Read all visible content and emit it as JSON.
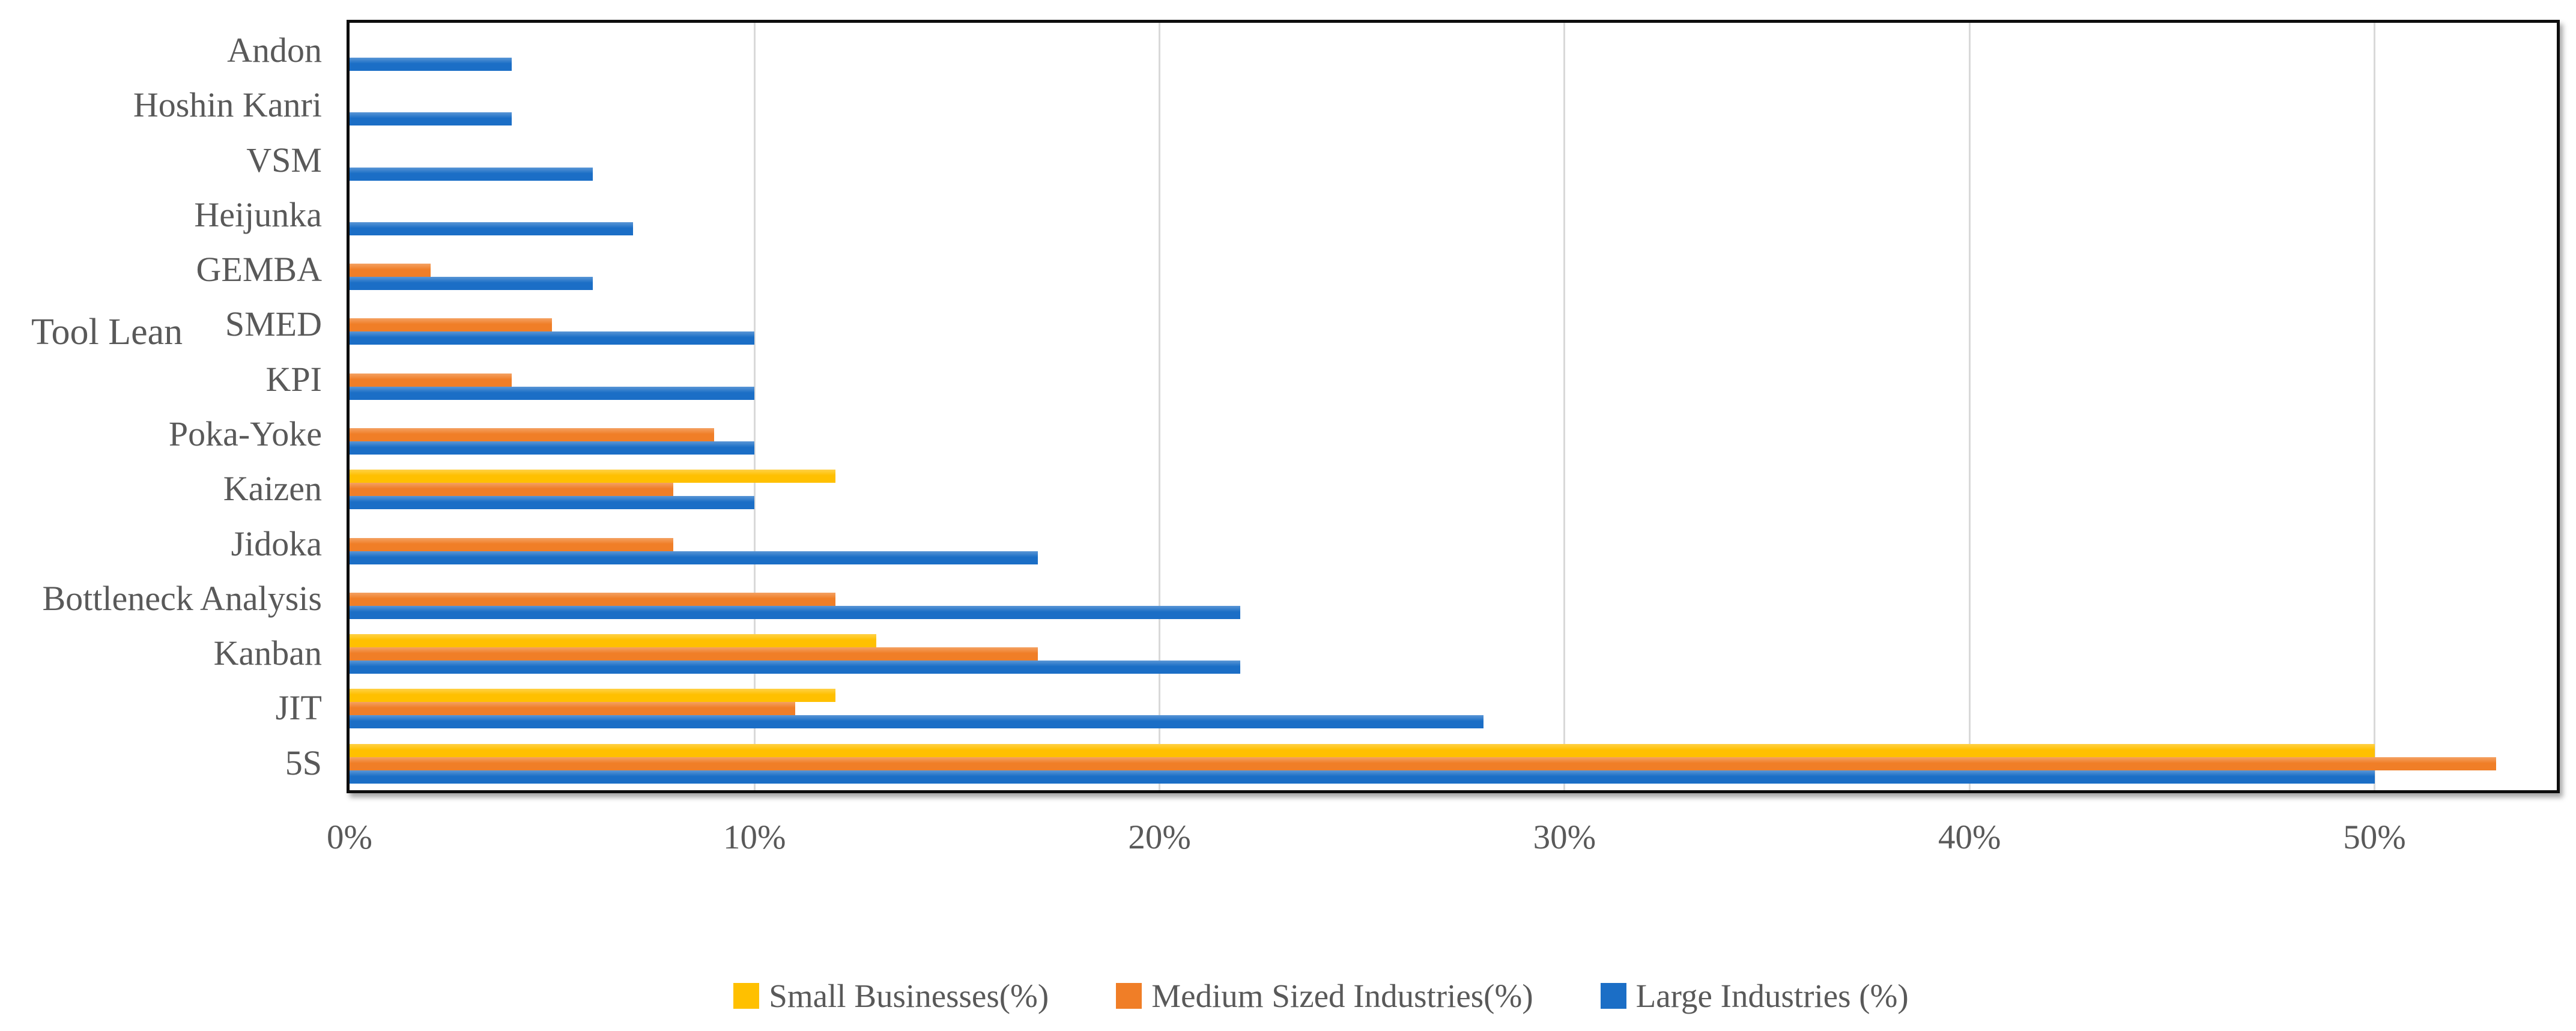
{
  "chart_data": {
    "type": "bar",
    "orientation": "horizontal",
    "axis_title": "Tool Lean",
    "categories": [
      "Andon",
      "Hoshin Kanri",
      "VSM",
      "Heijunka",
      "GEMBA",
      "SMED",
      "KPI",
      "Poka-Yoke",
      "Kaizen",
      "Jidoka",
      "Bottleneck Analysis",
      "Kanban",
      "JIT",
      "5S"
    ],
    "series": [
      {
        "name": "Small Businesses(%)",
        "color": "#FFC000",
        "values": [
          0,
          0,
          0,
          0,
          0,
          0,
          0,
          0,
          12,
          0,
          0,
          13,
          12,
          50
        ]
      },
      {
        "name": "Medium Sized Industries(%)",
        "color": "#F07E27",
        "values": [
          0,
          0,
          0,
          0,
          2,
          5,
          4,
          9,
          8,
          8,
          12,
          17,
          11,
          53
        ]
      },
      {
        "name": "Large Industries (%)",
        "color": "#1B6EC6",
        "values": [
          4,
          4,
          6,
          7,
          6,
          10,
          10,
          10,
          10,
          17,
          22,
          22,
          28,
          50
        ]
      }
    ],
    "x_ticks": [
      {
        "label": "0%",
        "value": 0
      },
      {
        "label": "10%",
        "value": 10
      },
      {
        "label": "20%",
        "value": 20
      },
      {
        "label": "30%",
        "value": 30
      },
      {
        "label": "40%",
        "value": 40
      },
      {
        "label": "50%",
        "value": 50
      }
    ],
    "xlim": [
      0,
      54.5
    ],
    "grid": true,
    "legend_position": "bottom",
    "gridline_color": "#D9D9D9",
    "text_color": "#595959",
    "plot_border_color": "#0D0D0D"
  }
}
